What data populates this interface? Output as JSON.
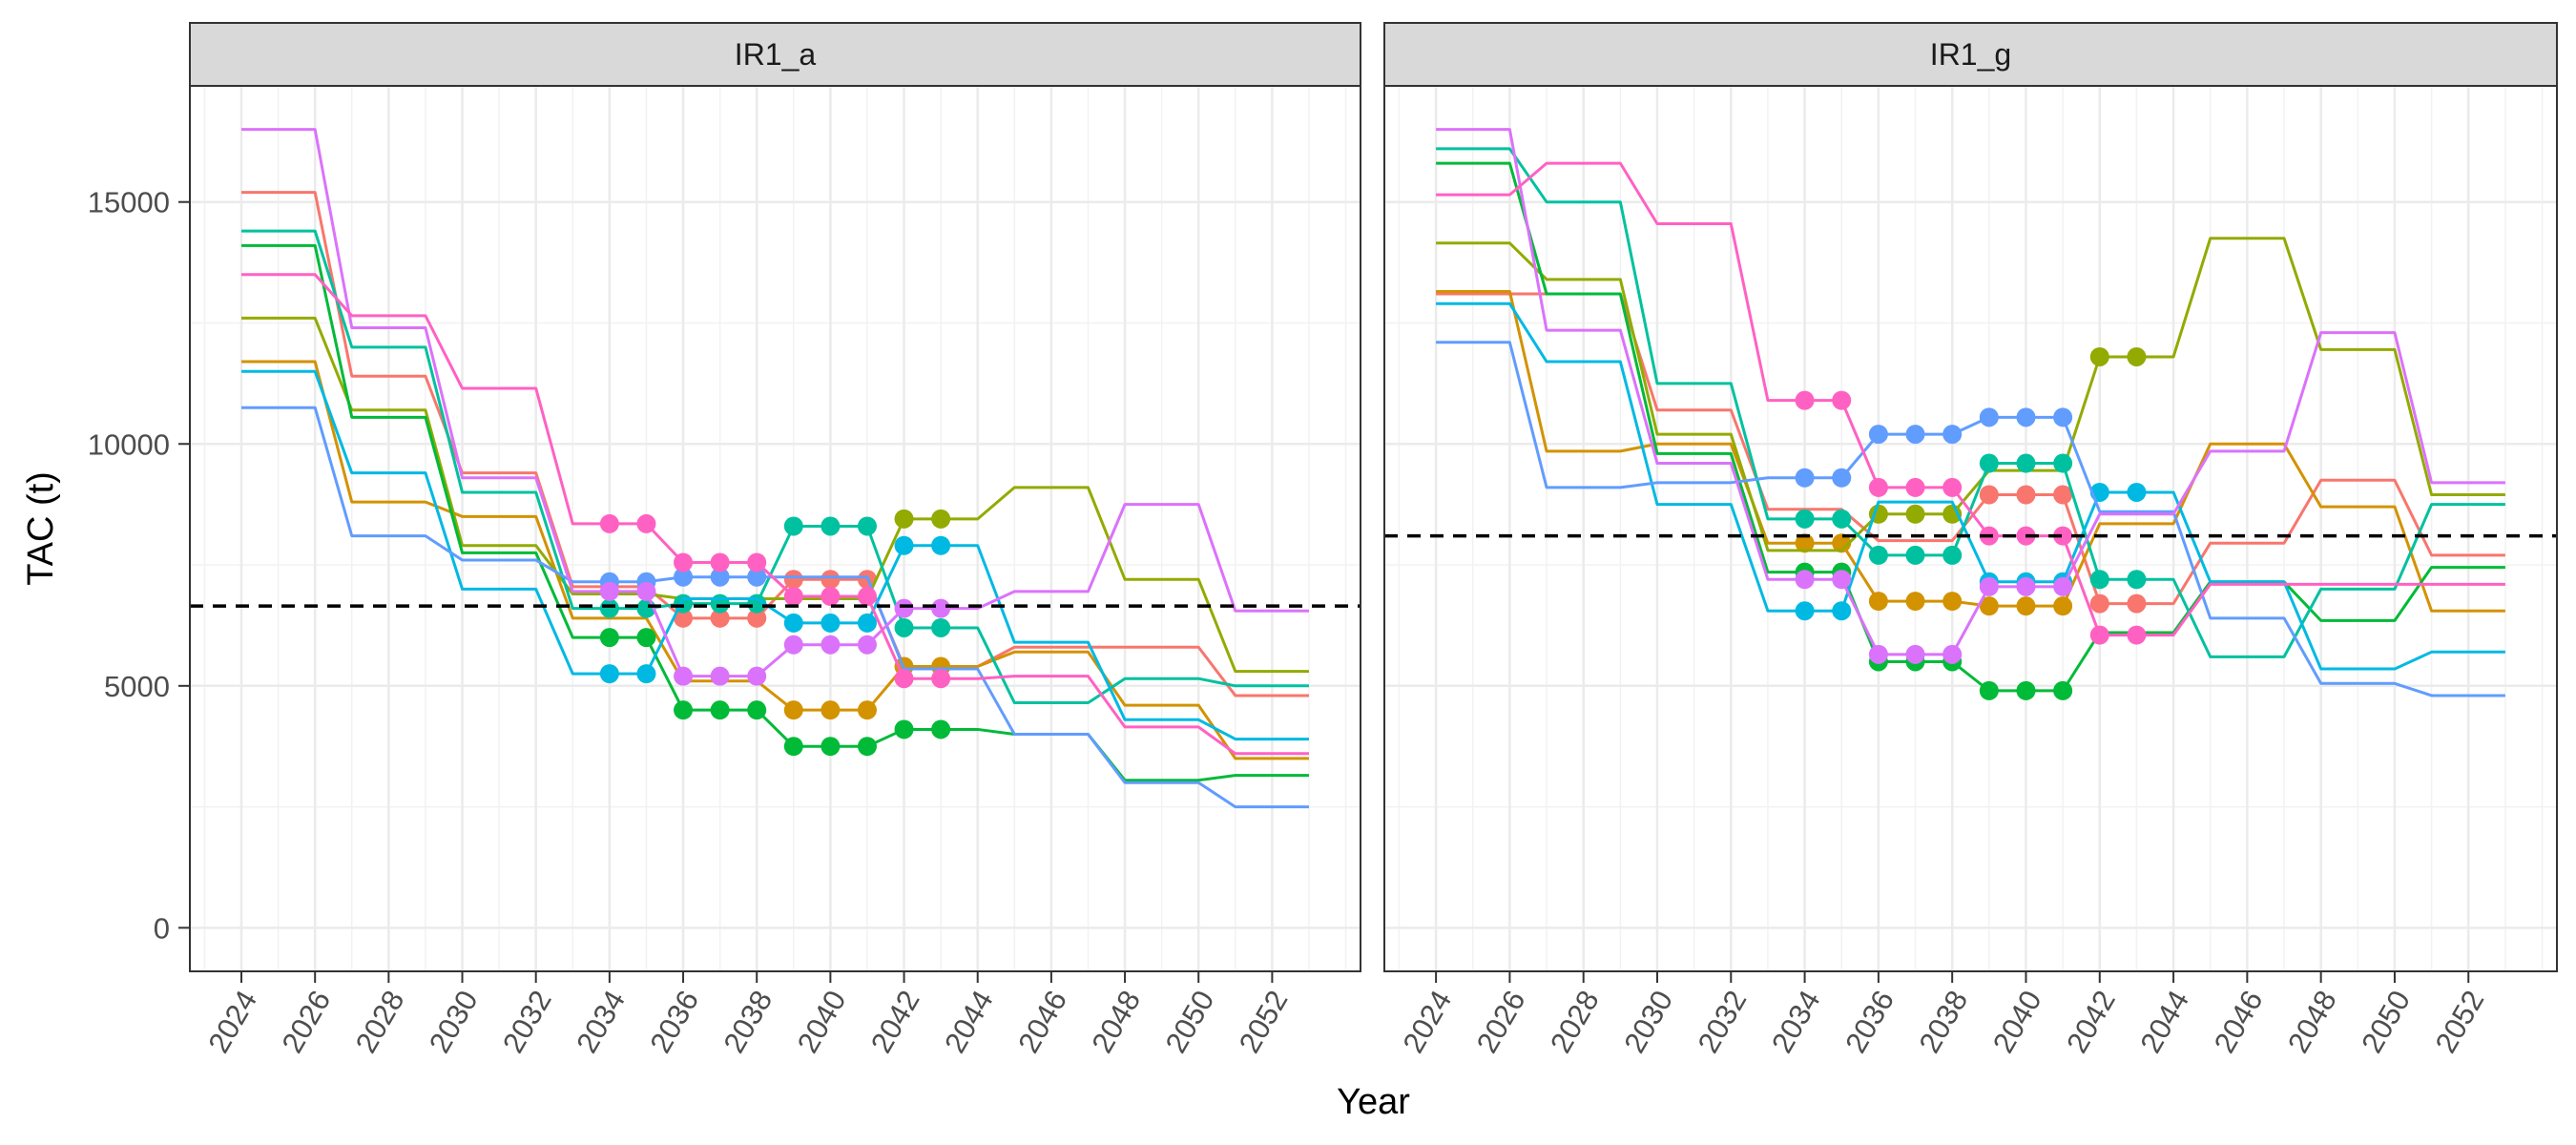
{
  "chart_data": {
    "type": "line",
    "xlabel": "Year",
    "ylabel": "TAC (t)",
    "x_ticks": [
      2024,
      2026,
      2028,
      2030,
      2032,
      2034,
      2036,
      2038,
      2040,
      2042,
      2044,
      2046,
      2048,
      2050,
      2052
    ],
    "y_ticks": [
      0,
      5000,
      10000,
      15000
    ],
    "xlim": [
      2022.6,
      2054.4
    ],
    "ylim": [
      -900,
      17400
    ],
    "grid": true,
    "colors": [
      "#F8766D",
      "#D39200",
      "#93AA00",
      "#00BA38",
      "#00C19F",
      "#00B9E3",
      "#619CFF",
      "#DB72FB",
      "#FF61C3"
    ],
    "panels": [
      {
        "title": "IR1_a",
        "reference_line": 6650,
        "series": [
          {
            "steps": [
              [
                2024,
                15200
              ],
              [
                2027,
                11400
              ],
              [
                2030,
                9400
              ],
              [
                2033,
                7050
              ],
              [
                2036,
                6400
              ],
              [
                2039,
                7200
              ],
              [
                2042,
                5400
              ],
              [
                2045,
                5800
              ],
              [
                2051,
                4800
              ]
            ],
            "marker_years": [
              2036,
              2037,
              2038,
              2039,
              2040,
              2041
            ]
          },
          {
            "steps": [
              [
                2024,
                11700
              ],
              [
                2027,
                8800
              ],
              [
                2030,
                8500
              ],
              [
                2033,
                6400
              ],
              [
                2036,
                5100
              ],
              [
                2039,
                4500
              ],
              [
                2042,
                5400
              ],
              [
                2045,
                5700
              ],
              [
                2048,
                4600
              ],
              [
                2051,
                3500
              ]
            ],
            "marker_years": [
              2039,
              2040,
              2041,
              2042,
              2043
            ]
          },
          {
            "steps": [
              [
                2024,
                12600
              ],
              [
                2027,
                10700
              ],
              [
                2030,
                7900
              ],
              [
                2033,
                6900
              ],
              [
                2036,
                6800
              ],
              [
                2042,
                8450
              ],
              [
                2045,
                9100
              ],
              [
                2048,
                7200
              ],
              [
                2051,
                5300
              ]
            ],
            "marker_years": [
              2042,
              2043
            ]
          },
          {
            "steps": [
              [
                2024,
                14100
              ],
              [
                2027,
                10550
              ],
              [
                2030,
                7750
              ],
              [
                2033,
                6000
              ],
              [
                2036,
                4500
              ],
              [
                2039,
                3750
              ],
              [
                2042,
                4100
              ],
              [
                2045,
                4000
              ],
              [
                2048,
                3050
              ],
              [
                2051,
                3150
              ]
            ],
            "marker_years": [
              2034,
              2035,
              2036,
              2037,
              2038,
              2039,
              2040,
              2041,
              2042,
              2043
            ]
          },
          {
            "steps": [
              [
                2024,
                14400
              ],
              [
                2027,
                12000
              ],
              [
                2030,
                9000
              ],
              [
                2033,
                6600
              ],
              [
                2036,
                6700
              ],
              [
                2039,
                8300
              ],
              [
                2042,
                6200
              ],
              [
                2045,
                4650
              ],
              [
                2048,
                5150
              ],
              [
                2051,
                5000
              ]
            ],
            "marker_years": [
              2034,
              2035,
              2036,
              2037,
              2038,
              2039,
              2040,
              2041,
              2042,
              2043
            ]
          },
          {
            "steps": [
              [
                2024,
                11500
              ],
              [
                2027,
                9400
              ],
              [
                2030,
                7000
              ],
              [
                2033,
                5250
              ],
              [
                2036,
                6800
              ],
              [
                2039,
                6300
              ],
              [
                2042,
                7900
              ],
              [
                2045,
                5900
              ],
              [
                2048,
                4300
              ],
              [
                2051,
                3900
              ]
            ],
            "marker_years": [
              2034,
              2035,
              2039,
              2040,
              2041,
              2042,
              2043
            ]
          },
          {
            "steps": [
              [
                2024,
                10750
              ],
              [
                2027,
                8100
              ],
              [
                2030,
                7600
              ],
              [
                2033,
                7150
              ],
              [
                2036,
                7250
              ],
              [
                2042,
                5350
              ],
              [
                2045,
                4000
              ],
              [
                2048,
                3000
              ],
              [
                2051,
                2500
              ]
            ],
            "marker_years": [
              2034,
              2035,
              2036,
              2037,
              2038
            ]
          },
          {
            "steps": [
              [
                2024,
                16500
              ],
              [
                2027,
                12400
              ],
              [
                2030,
                9300
              ],
              [
                2033,
                6950
              ],
              [
                2036,
                5200
              ],
              [
                2039,
                5850
              ],
              [
                2042,
                6600
              ],
              [
                2045,
                6950
              ],
              [
                2048,
                8750
              ],
              [
                2051,
                6550
              ]
            ],
            "marker_years": [
              2034,
              2035,
              2036,
              2037,
              2038,
              2039,
              2040,
              2041,
              2042,
              2043
            ]
          },
          {
            "steps": [
              [
                2024,
                13500
              ],
              [
                2027,
                12650
              ],
              [
                2030,
                11150
              ],
              [
                2033,
                8350
              ],
              [
                2036,
                7550
              ],
              [
                2039,
                6850
              ],
              [
                2042,
                5150
              ],
              [
                2045,
                5200
              ],
              [
                2048,
                4150
              ],
              [
                2051,
                3600
              ]
            ],
            "marker_years": [
              2034,
              2035,
              2036,
              2037,
              2038,
              2039,
              2040,
              2041,
              2042,
              2043
            ]
          }
        ]
      },
      {
        "title": "IR1_g",
        "reference_line": 8100,
        "series": [
          {
            "steps": [
              [
                2024,
                13100
              ],
              [
                2027,
                13100
              ],
              [
                2030,
                10700
              ],
              [
                2033,
                8650
              ],
              [
                2036,
                8000
              ],
              [
                2039,
                8950
              ],
              [
                2042,
                6700
              ],
              [
                2045,
                7950
              ],
              [
                2048,
                9250
              ],
              [
                2051,
                7700
              ]
            ],
            "marker_years": [
              2039,
              2040,
              2041,
              2042,
              2043
            ]
          },
          {
            "steps": [
              [
                2024,
                13150
              ],
              [
                2027,
                9850
              ],
              [
                2030,
                10000
              ],
              [
                2033,
                7950
              ],
              [
                2036,
                6750
              ],
              [
                2039,
                6650
              ],
              [
                2042,
                8350
              ],
              [
                2045,
                10000
              ],
              [
                2048,
                8700
              ],
              [
                2051,
                6550
              ]
            ],
            "marker_years": [
              2034,
              2035,
              2036,
              2037,
              2038,
              2039,
              2040,
              2041
            ]
          },
          {
            "steps": [
              [
                2024,
                14150
              ],
              [
                2027,
                13400
              ],
              [
                2030,
                10200
              ],
              [
                2033,
                7800
              ],
              [
                2036,
                8550
              ],
              [
                2039,
                9450
              ],
              [
                2042,
                11800
              ],
              [
                2045,
                14250
              ],
              [
                2048,
                11950
              ],
              [
                2051,
                8950
              ]
            ],
            "marker_years": [
              2036,
              2037,
              2038,
              2042,
              2043
            ]
          },
          {
            "steps": [
              [
                2024,
                15800
              ],
              [
                2027,
                13100
              ],
              [
                2030,
                9800
              ],
              [
                2033,
                7350
              ],
              [
                2036,
                5500
              ],
              [
                2039,
                4900
              ],
              [
                2042,
                6100
              ],
              [
                2045,
                7150
              ],
              [
                2048,
                6350
              ],
              [
                2051,
                7450
              ]
            ],
            "marker_years": [
              2034,
              2035,
              2036,
              2037,
              2038,
              2039,
              2040,
              2041
            ]
          },
          {
            "steps": [
              [
                2024,
                16100
              ],
              [
                2027,
                15000
              ],
              [
                2030,
                11250
              ],
              [
                2033,
                8450
              ],
              [
                2036,
                7700
              ],
              [
                2039,
                9600
              ],
              [
                2042,
                7200
              ],
              [
                2045,
                5600
              ],
              [
                2048,
                7000
              ],
              [
                2051,
                8750
              ]
            ],
            "marker_years": [
              2034,
              2035,
              2036,
              2037,
              2038,
              2039,
              2040,
              2041,
              2042,
              2043
            ]
          },
          {
            "steps": [
              [
                2024,
                12900
              ],
              [
                2027,
                11700
              ],
              [
                2030,
                8750
              ],
              [
                2033,
                6550
              ],
              [
                2036,
                8800
              ],
              [
                2039,
                7150
              ],
              [
                2042,
                9000
              ],
              [
                2045,
                7150
              ],
              [
                2048,
                5350
              ],
              [
                2051,
                5700
              ]
            ],
            "marker_years": [
              2034,
              2035,
              2039,
              2040,
              2041,
              2042,
              2043
            ]
          },
          {
            "steps": [
              [
                2024,
                12100
              ],
              [
                2027,
                9100
              ],
              [
                2030,
                9200
              ],
              [
                2033,
                9300
              ],
              [
                2036,
                10200
              ],
              [
                2039,
                10550
              ],
              [
                2042,
                8600
              ],
              [
                2045,
                6400
              ],
              [
                2048,
                5050
              ],
              [
                2051,
                4800
              ]
            ],
            "marker_years": [
              2034,
              2035,
              2036,
              2037,
              2038,
              2039,
              2040,
              2041
            ]
          },
          {
            "steps": [
              [
                2024,
                16500
              ],
              [
                2027,
                12350
              ],
              [
                2030,
                9600
              ],
              [
                2033,
                7200
              ],
              [
                2036,
                5650
              ],
              [
                2039,
                7050
              ],
              [
                2042,
                8550
              ],
              [
                2045,
                9850
              ],
              [
                2048,
                12300
              ],
              [
                2051,
                9200
              ]
            ],
            "marker_years": [
              2034,
              2035,
              2036,
              2037,
              2038,
              2039,
              2040,
              2041
            ]
          },
          {
            "steps": [
              [
                2024,
                15150
              ],
              [
                2027,
                15800
              ],
              [
                2030,
                14550
              ],
              [
                2033,
                10900
              ],
              [
                2036,
                9100
              ],
              [
                2039,
                8100
              ],
              [
                2042,
                6050
              ],
              [
                2045,
                7100
              ],
              [
                2051,
                7100
              ]
            ],
            "marker_years": [
              2034,
              2035,
              2036,
              2037,
              2038,
              2039,
              2040,
              2041,
              2042,
              2043
            ]
          }
        ]
      }
    ]
  }
}
